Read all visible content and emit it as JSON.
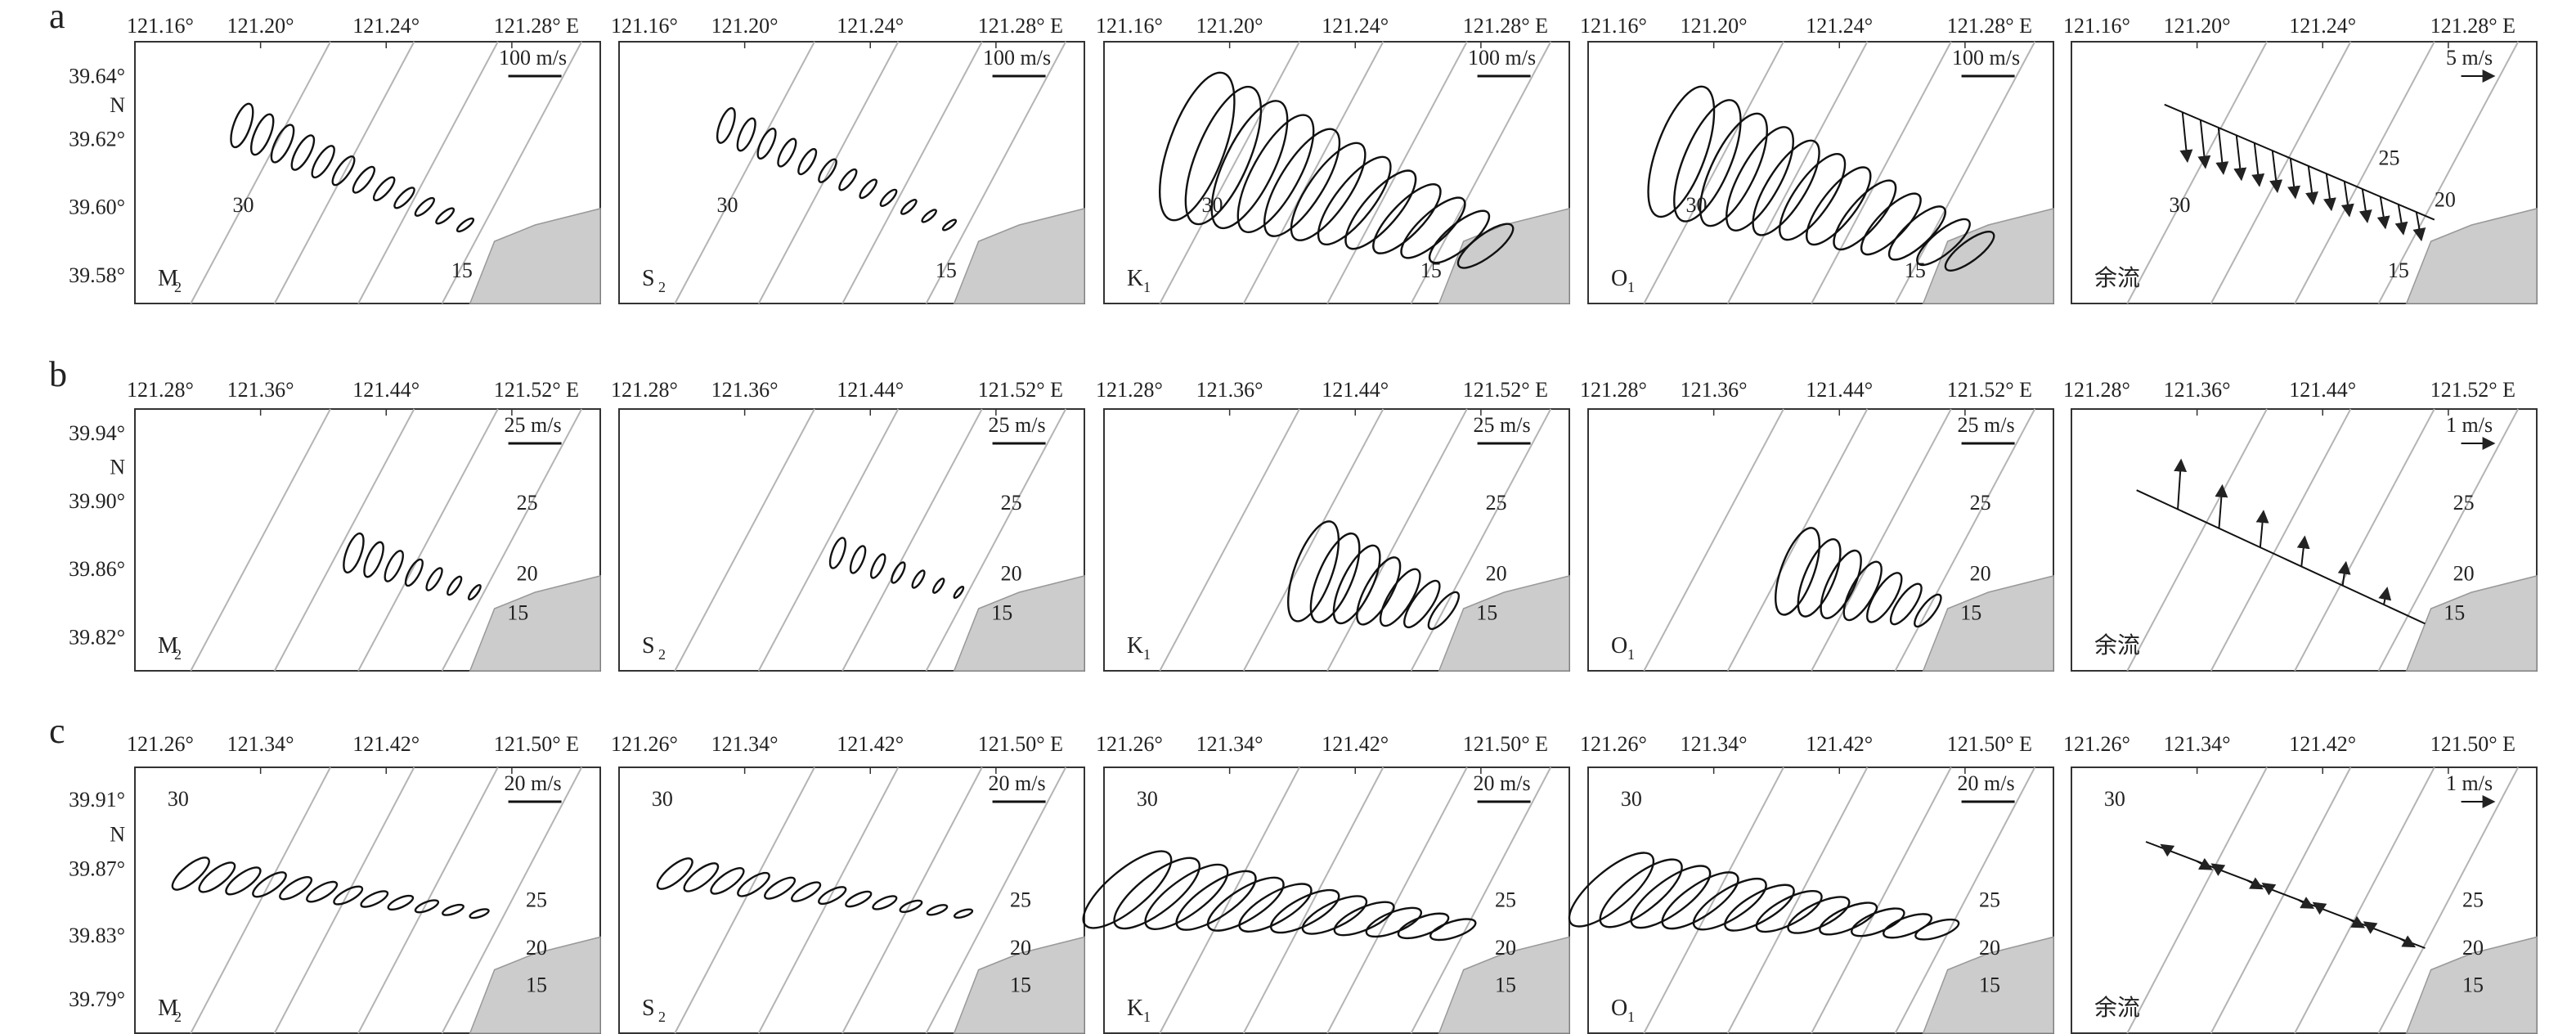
{
  "figure": {
    "rows": [
      {
        "label": "a",
        "lon_ticks": [
          "121.16°",
          "121.20°",
          "121.24°",
          "121.28° E"
        ],
        "lat_ticks": [
          "39.64°",
          "N",
          "39.62°",
          "39.60°",
          "39.58°"
        ],
        "scales": [
          "100 m/s",
          "100 m/s",
          "100 m/s",
          "100 m/s",
          "5 m/s"
        ],
        "isobaths_left": [
          "30",
          "30",
          "30",
          "30",
          "30"
        ],
        "isobaths_right": [
          "15",
          "15",
          "15",
          "15",
          "15"
        ],
        "extra_isobaths": [
          "25",
          "20"
        ]
      },
      {
        "label": "b",
        "lon_ticks": [
          "121.28°",
          "121.36°",
          "121.44°",
          "121.52° E"
        ],
        "lat_ticks": [
          "39.94°",
          "N",
          "39.90°",
          "39.86°",
          "39.82°"
        ],
        "scales": [
          "25 m/s",
          "25 m/s",
          "25 m/s",
          "25 m/s",
          "1 m/s"
        ],
        "isobaths": [
          "25",
          "20",
          "15"
        ]
      },
      {
        "label": "c",
        "lon_ticks": [
          "121.26°",
          "121.34°",
          "121.42°",
          "121.50° E"
        ],
        "lat_ticks": [
          "39.91°",
          "N",
          "39.87°",
          "39.83°",
          "39.79°"
        ],
        "scales": [
          "20 m/s",
          "20 m/s",
          "20 m/s",
          "20 m/s",
          "1 m/s"
        ],
        "isobaths": [
          "30",
          "25",
          "20",
          "15"
        ]
      }
    ],
    "panel_labels": [
      "M",
      "S",
      "K",
      "O",
      "余流"
    ],
    "panel_subscripts": [
      "2",
      "2",
      "1",
      "1",
      ""
    ],
    "land_color": "#cccccc",
    "isobath_color": "#b4b4b4"
  }
}
